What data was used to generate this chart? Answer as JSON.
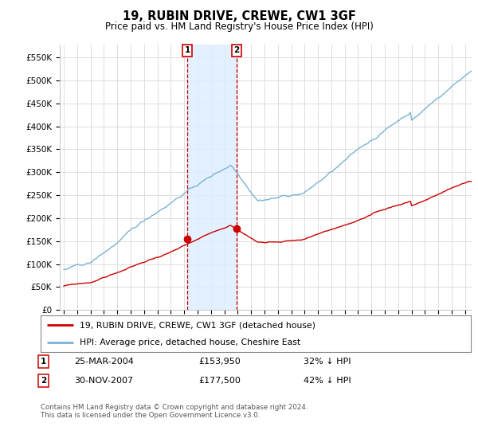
{
  "title": "19, RUBIN DRIVE, CREWE, CW1 3GF",
  "subtitle": "Price paid vs. HM Land Registry's House Price Index (HPI)",
  "ylabel_ticks": [
    "£0",
    "£50K",
    "£100K",
    "£150K",
    "£200K",
    "£250K",
    "£300K",
    "£350K",
    "£400K",
    "£450K",
    "£500K",
    "£550K"
  ],
  "ytick_values": [
    0,
    50000,
    100000,
    150000,
    200000,
    250000,
    300000,
    350000,
    400000,
    450000,
    500000,
    550000
  ],
  "ylim": [
    0,
    578000
  ],
  "xlim_start": 1994.7,
  "xlim_end": 2025.5,
  "hpi_color": "#7ab3d4",
  "price_color": "#cc0000",
  "sale1_x": 2004.23,
  "sale1_y": 153950,
  "sale2_x": 2007.92,
  "sale2_y": 177500,
  "shade_x1": 2004.23,
  "shade_x2": 2007.92,
  "legend_line1": "19, RUBIN DRIVE, CREWE, CW1 3GF (detached house)",
  "legend_line2": "HPI: Average price, detached house, Cheshire East",
  "table_row1_num": "1",
  "table_row1_date": "25-MAR-2004",
  "table_row1_price": "£153,950",
  "table_row1_hpi": "32% ↓ HPI",
  "table_row2_num": "2",
  "table_row2_date": "30-NOV-2007",
  "table_row2_price": "£177,500",
  "table_row2_hpi": "42% ↓ HPI",
  "footer": "Contains HM Land Registry data © Crown copyright and database right 2024.\nThis data is licensed under the Open Government Licence v3.0.",
  "bg_color": "#ffffff",
  "plot_bg_color": "#ffffff",
  "grid_color": "#dddddd",
  "shade_color": "#ddeeff"
}
